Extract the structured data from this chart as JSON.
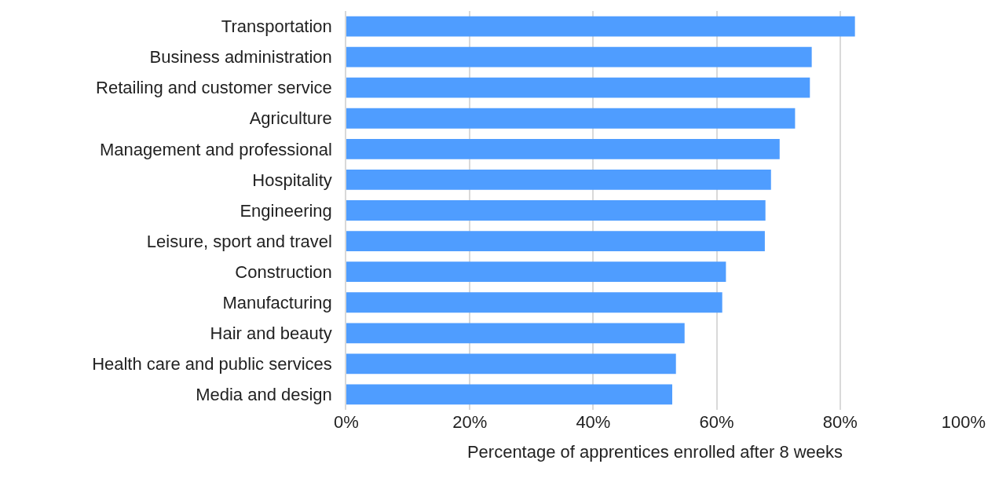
{
  "chart_data": {
    "type": "bar",
    "orientation": "horizontal",
    "xlabel": "Percentage of apprentices enrolled after 8 weeks",
    "categories": [
      "Transportation",
      "Business administration",
      "Retailing and customer service",
      "Agriculture",
      "Management and professional",
      "Hospitality",
      "Engineering",
      "Leisure, sport and travel",
      "Construction",
      "Manufacturing",
      "Hair and beauty",
      "Health care and public services",
      "Media and design"
    ],
    "values": [
      82.4,
      75.4,
      75.1,
      72.7,
      70.2,
      68.8,
      67.9,
      67.8,
      61.5,
      60.9,
      54.8,
      53.4,
      52.8
    ],
    "color": "#4f9dff",
    "xlim": [
      0,
      100
    ],
    "xticks": [
      {
        "value": 0,
        "label": "0%"
      },
      {
        "value": 20,
        "label": "20%"
      },
      {
        "value": 40,
        "label": "40%"
      },
      {
        "value": 60,
        "label": "60%"
      },
      {
        "value": 80,
        "label": "80%"
      },
      {
        "value": 100,
        "label": "100%"
      }
    ],
    "grid": "x"
  }
}
